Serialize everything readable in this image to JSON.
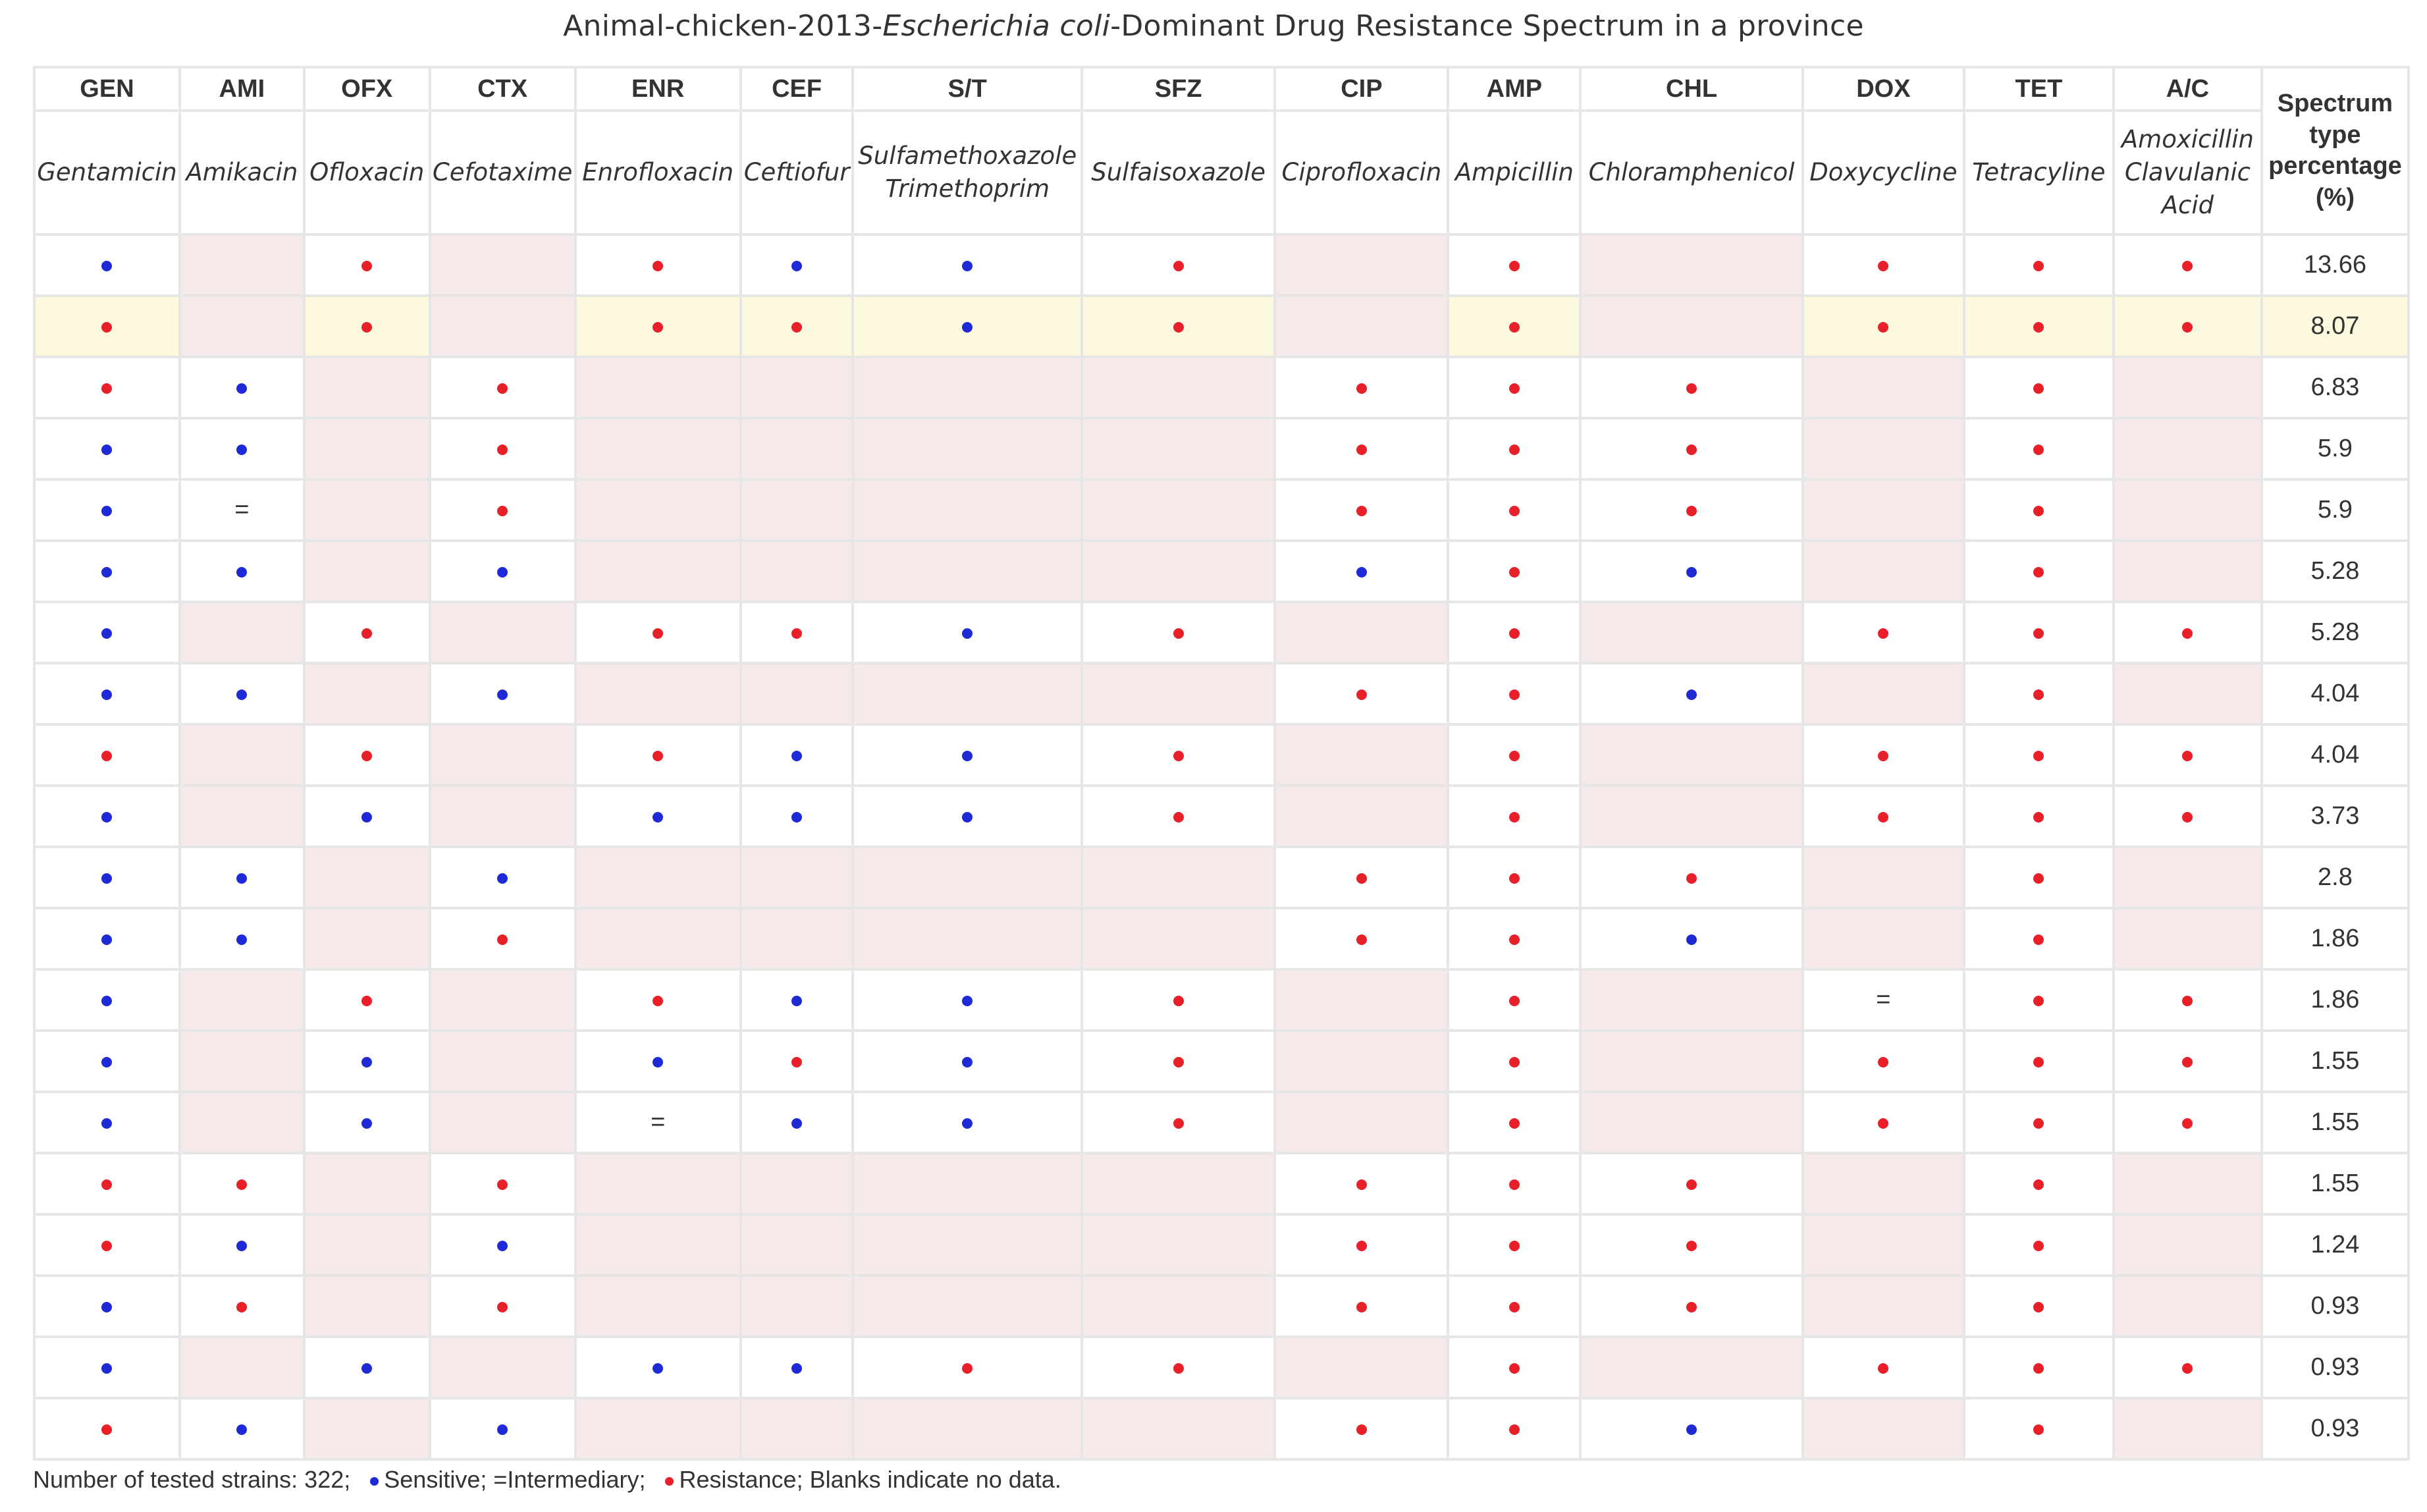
{
  "title": {
    "prefix": "Animal-chicken-2013-",
    "organism": "Escherichia coli",
    "suffix": "-Dominant Drug Resistance Spectrum in a province"
  },
  "header_pct": [
    "Spectrum",
    "type",
    "percentage",
    "(%)"
  ],
  "drugs": [
    {
      "abbr": "GEN",
      "name": [
        "Gentamicin"
      ]
    },
    {
      "abbr": "AMI",
      "name": [
        "Amikacin"
      ]
    },
    {
      "abbr": "OFX",
      "name": [
        "Ofloxacin"
      ]
    },
    {
      "abbr": "CTX",
      "name": [
        "Cefotaxime"
      ]
    },
    {
      "abbr": "ENR",
      "name": [
        "Enrofloxacin"
      ]
    },
    {
      "abbr": "CEF",
      "name": [
        "Ceftiofur"
      ]
    },
    {
      "abbr": "S/T",
      "name": [
        "Sulfamethoxazole",
        "Trimethoprim"
      ]
    },
    {
      "abbr": "SFZ",
      "name": [
        "Sulfaisoxazole"
      ]
    },
    {
      "abbr": "CIP",
      "name": [
        "Ciprofloxacin"
      ]
    },
    {
      "abbr": "AMP",
      "name": [
        "Ampicillin"
      ]
    },
    {
      "abbr": "CHL",
      "name": [
        "Chloramphenicol"
      ]
    },
    {
      "abbr": "DOX",
      "name": [
        "Doxycycline"
      ]
    },
    {
      "abbr": "TET",
      "name": [
        "Tetracyline"
      ]
    },
    {
      "abbr": "A/C",
      "name": [
        "Amoxicillin",
        "Clavulanic",
        "Acid"
      ]
    }
  ],
  "rows": [
    {
      "cells": [
        "S",
        "",
        "R",
        "",
        "R",
        "S",
        "S",
        "R",
        "",
        "R",
        "",
        "R",
        "R",
        "R"
      ],
      "pct": "13.66"
    },
    {
      "cells": [
        "R",
        "",
        "R",
        "",
        "R",
        "R",
        "S",
        "R",
        "",
        "R",
        "",
        "R",
        "R",
        "R"
      ],
      "pct": "8.07",
      "highlight": true
    },
    {
      "cells": [
        "R",
        "S",
        "",
        "R",
        "",
        "",
        "",
        "",
        "R",
        "R",
        "R",
        "",
        "R",
        ""
      ],
      "pct": "6.83"
    },
    {
      "cells": [
        "S",
        "S",
        "",
        "R",
        "",
        "",
        "",
        "",
        "R",
        "R",
        "R",
        "",
        "R",
        ""
      ],
      "pct": "5.9"
    },
    {
      "cells": [
        "S",
        "=",
        "",
        "R",
        "",
        "",
        "",
        "",
        "R",
        "R",
        "R",
        "",
        "R",
        ""
      ],
      "pct": "5.9"
    },
    {
      "cells": [
        "S",
        "S",
        "",
        "S",
        "",
        "",
        "",
        "",
        "S",
        "R",
        "S",
        "",
        "R",
        ""
      ],
      "pct": "5.28"
    },
    {
      "cells": [
        "S",
        "",
        "R",
        "",
        "R",
        "R",
        "S",
        "R",
        "",
        "R",
        "",
        "R",
        "R",
        "R"
      ],
      "pct": "5.28"
    },
    {
      "cells": [
        "S",
        "S",
        "",
        "S",
        "",
        "",
        "",
        "",
        "R",
        "R",
        "S",
        "",
        "R",
        ""
      ],
      "pct": "4.04"
    },
    {
      "cells": [
        "R",
        "",
        "R",
        "",
        "R",
        "S",
        "S",
        "R",
        "",
        "R",
        "",
        "R",
        "R",
        "R"
      ],
      "pct": "4.04"
    },
    {
      "cells": [
        "S",
        "",
        "S",
        "",
        "S",
        "S",
        "S",
        "R",
        "",
        "R",
        "",
        "R",
        "R",
        "R"
      ],
      "pct": "3.73"
    },
    {
      "cells": [
        "S",
        "S",
        "",
        "S",
        "",
        "",
        "",
        "",
        "R",
        "R",
        "R",
        "",
        "R",
        ""
      ],
      "pct": "2.8"
    },
    {
      "cells": [
        "S",
        "S",
        "",
        "R",
        "",
        "",
        "",
        "",
        "R",
        "R",
        "S",
        "",
        "R",
        ""
      ],
      "pct": "1.86"
    },
    {
      "cells": [
        "S",
        "",
        "R",
        "",
        "R",
        "S",
        "S",
        "R",
        "",
        "R",
        "",
        "=",
        "R",
        "R"
      ],
      "pct": "1.86"
    },
    {
      "cells": [
        "S",
        "",
        "S",
        "",
        "S",
        "R",
        "S",
        "R",
        "",
        "R",
        "",
        "R",
        "R",
        "R"
      ],
      "pct": "1.55"
    },
    {
      "cells": [
        "S",
        "",
        "S",
        "",
        "=",
        "S",
        "S",
        "R",
        "",
        "R",
        "",
        "R",
        "R",
        "R"
      ],
      "pct": "1.55"
    },
    {
      "cells": [
        "R",
        "R",
        "",
        "R",
        "",
        "",
        "",
        "",
        "R",
        "R",
        "R",
        "",
        "R",
        ""
      ],
      "pct": "1.55"
    },
    {
      "cells": [
        "R",
        "S",
        "",
        "S",
        "",
        "",
        "",
        "",
        "R",
        "R",
        "R",
        "",
        "R",
        ""
      ],
      "pct": "1.24"
    },
    {
      "cells": [
        "S",
        "R",
        "",
        "R",
        "",
        "",
        "",
        "",
        "R",
        "R",
        "R",
        "",
        "R",
        ""
      ],
      "pct": "0.93"
    },
    {
      "cells": [
        "S",
        "",
        "S",
        "",
        "S",
        "S",
        "R",
        "R",
        "",
        "R",
        "",
        "R",
        "R",
        "R"
      ],
      "pct": "0.93"
    },
    {
      "cells": [
        "R",
        "S",
        "",
        "S",
        "",
        "",
        "",
        "",
        "R",
        "R",
        "S",
        "",
        "R",
        ""
      ],
      "pct": "0.93"
    }
  ],
  "legend": {
    "strains": "Number of tested strains: 322;",
    "sensitive": "Sensitive;",
    "intermediary": "=Intermediary;",
    "resistance": "Resistance; Blanks indicate no data."
  },
  "colors": {
    "resistance_dot": "#e8202a",
    "sensitive_dot": "#1e2ad6",
    "no_data_cell": "#f6e9e9",
    "highlight_row": "#fdf9df"
  },
  "icons": {
    "resistance": "red-dot-icon",
    "sensitive": "blue-dot-icon",
    "intermediary": "equals-sign"
  }
}
